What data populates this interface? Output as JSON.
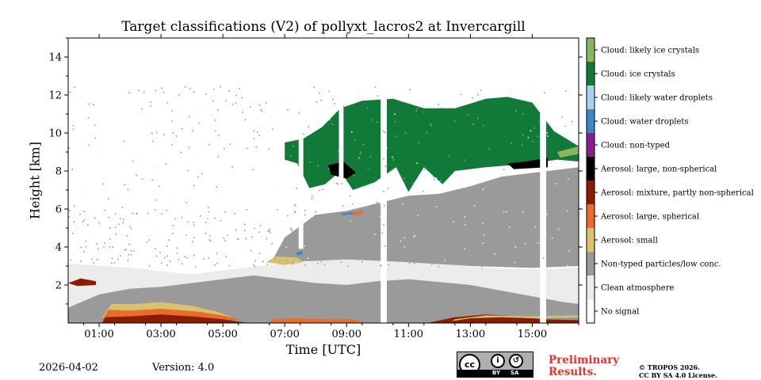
{
  "chart_data": {
    "type": "heatmap",
    "title": "Target classifications (V2) of pollyxt_lacros2 at Invercargill",
    "xlabel": "Time [UTC]",
    "ylabel": "Height [km]",
    "xlim_hours": [
      0,
      16.5
    ],
    "ylim_km": [
      0,
      15
    ],
    "x_ticks": [
      {
        "hour": 1,
        "label": "01:00"
      },
      {
        "hour": 3,
        "label": "03:00"
      },
      {
        "hour": 5,
        "label": "05:00"
      },
      {
        "hour": 7,
        "label": "07:00"
      },
      {
        "hour": 9,
        "label": "09:00"
      },
      {
        "hour": 11,
        "label": "11:00"
      },
      {
        "hour": 13,
        "label": "13:00"
      },
      {
        "hour": 15,
        "label": "15:00"
      }
    ],
    "y_ticks": [
      {
        "km": 2,
        "label": "2"
      },
      {
        "km": 4,
        "label": "4"
      },
      {
        "km": 6,
        "label": "6"
      },
      {
        "km": 8,
        "label": "8"
      },
      {
        "km": 10,
        "label": "10"
      },
      {
        "km": 12,
        "label": "12"
      },
      {
        "km": 14,
        "label": "14"
      }
    ],
    "classes": [
      {
        "id": 0,
        "label": "No signal",
        "color": "#ffffff"
      },
      {
        "id": 1,
        "label": "Clean atmosphere",
        "color": "#ececec"
      },
      {
        "id": 2,
        "label": "Non-typed particles/low conc.",
        "color": "#9a9a9a"
      },
      {
        "id": 3,
        "label": "Aerosol: small",
        "color": "#d9c26f"
      },
      {
        "id": 4,
        "label": "Aerosol: large, spherical",
        "color": "#ea6c2a"
      },
      {
        "id": 5,
        "label": "Aerosol: mixture, partly non-spherical",
        "color": "#8b1c04"
      },
      {
        "id": 6,
        "label": "Aerosol: large, non-spherical",
        "color": "#000000"
      },
      {
        "id": 7,
        "label": "Cloud: non-typed",
        "color": "#861e8c"
      },
      {
        "id": 8,
        "label": "Cloud: water droplets",
        "color": "#3d86c8"
      },
      {
        "id": 9,
        "label": "Cloud: likely water droplets",
        "color": "#aad2ee"
      },
      {
        "id": 10,
        "label": "Cloud: ice crystals",
        "color": "#117a38"
      },
      {
        "id": 11,
        "label": "Cloud: likely ice crystals",
        "color": "#8ab561"
      }
    ],
    "layers": [
      {
        "class": 2,
        "polygon": [
          [
            0,
            0
          ],
          [
            0,
            3.1
          ],
          [
            1,
            3.0
          ],
          [
            2,
            2.9
          ],
          [
            3,
            2.7
          ],
          [
            4,
            2.55
          ],
          [
            5,
            2.75
          ],
          [
            6,
            2.95
          ],
          [
            7,
            3.1
          ],
          [
            8,
            3.25
          ],
          [
            9,
            3.35
          ],
          [
            10,
            3.3
          ],
          [
            11,
            3.2
          ],
          [
            12,
            3.1
          ],
          [
            13,
            2.95
          ],
          [
            14,
            2.85
          ],
          [
            15,
            2.8
          ],
          [
            16,
            2.85
          ],
          [
            16.5,
            2.9
          ],
          [
            16.5,
            0
          ]
        ]
      },
      {
        "class": 1,
        "polygon": [
          [
            0,
            3.1
          ],
          [
            0,
            0.8
          ],
          [
            1,
            1.5
          ],
          [
            2,
            1.8
          ],
          [
            3,
            1.9
          ],
          [
            4,
            2.1
          ],
          [
            5,
            2.3
          ],
          [
            6,
            2.5
          ],
          [
            7,
            2.3
          ],
          [
            8,
            2.1
          ],
          [
            9,
            2.0
          ],
          [
            10,
            2.2
          ],
          [
            11,
            2.3
          ],
          [
            12,
            2.15
          ],
          [
            13,
            2.0
          ],
          [
            14,
            1.7
          ],
          [
            15,
            1.4
          ],
          [
            16,
            1.1
          ],
          [
            16.5,
            1.0
          ],
          [
            16.5,
            2.9
          ],
          [
            16,
            2.85
          ],
          [
            15,
            2.8
          ],
          [
            14,
            2.85
          ],
          [
            13,
            2.95
          ],
          [
            12,
            3.1
          ],
          [
            11,
            3.2
          ],
          [
            10,
            3.3
          ],
          [
            9,
            3.35
          ],
          [
            8,
            3.25
          ],
          [
            7,
            3.1
          ],
          [
            6,
            2.95
          ],
          [
            5,
            2.75
          ],
          [
            4,
            2.55
          ],
          [
            3,
            2.7
          ],
          [
            2,
            2.9
          ],
          [
            1,
            3.0
          ]
        ]
      },
      {
        "class": 2,
        "polygon": [
          [
            0,
            0
          ],
          [
            0,
            0.8
          ],
          [
            1,
            1.5
          ],
          [
            2,
            1.8
          ],
          [
            3,
            1.9
          ],
          [
            4,
            2.1
          ],
          [
            5,
            2.3
          ],
          [
            6,
            2.5
          ],
          [
            7,
            2.3
          ],
          [
            8,
            2.1
          ],
          [
            9,
            2.0
          ],
          [
            10,
            2.2
          ],
          [
            11,
            2.3
          ],
          [
            12,
            2.15
          ],
          [
            13,
            2.0
          ],
          [
            14,
            1.7
          ],
          [
            15,
            1.4
          ],
          [
            16,
            1.1
          ],
          [
            16.5,
            1.0
          ],
          [
            16.5,
            0
          ]
        ]
      },
      {
        "class": 2,
        "polygon": [
          [
            6.6,
            3.3
          ],
          [
            7,
            4.5
          ],
          [
            8,
            5.7
          ],
          [
            9,
            5.9
          ],
          [
            10,
            6.3
          ],
          [
            11,
            6.7
          ],
          [
            12,
            6.8
          ],
          [
            13,
            7.2
          ],
          [
            14,
            7.7
          ],
          [
            15,
            7.9
          ],
          [
            16,
            8.1
          ],
          [
            16.5,
            8.2
          ],
          [
            16.5,
            3.0
          ],
          [
            15,
            2.9
          ],
          [
            13,
            3.0
          ],
          [
            11,
            3.2
          ],
          [
            9,
            3.35
          ],
          [
            7,
            3.2
          ]
        ]
      },
      {
        "class": 3,
        "polygon": [
          [
            1.1,
            0.3
          ],
          [
            1.4,
            1.0
          ],
          [
            2.2,
            1.0
          ],
          [
            3.0,
            1.1
          ],
          [
            4.0,
            0.9
          ],
          [
            4.8,
            0.6
          ],
          [
            5.3,
            0.3
          ]
        ]
      },
      {
        "class": 4,
        "polygon": [
          [
            1.1,
            0.15
          ],
          [
            1.3,
            0.7
          ],
          [
            2.0,
            0.65
          ],
          [
            3.0,
            0.75
          ],
          [
            4.2,
            0.6
          ],
          [
            5.0,
            0.4
          ],
          [
            5.6,
            0.15
          ]
        ]
      },
      {
        "class": 5,
        "polygon": [
          [
            1.1,
            0.0
          ],
          [
            1.2,
            0.3
          ],
          [
            2.0,
            0.35
          ],
          [
            3.0,
            0.45
          ],
          [
            4.0,
            0.35
          ],
          [
            5.0,
            0.2
          ],
          [
            5.8,
            0.0
          ]
        ]
      },
      {
        "class": 5,
        "polygon": [
          [
            0.0,
            2.1
          ],
          [
            0.4,
            2.35
          ],
          [
            0.9,
            2.2
          ],
          [
            0.9,
            2.0
          ],
          [
            0.3,
            1.95
          ]
        ]
      },
      {
        "class": 4,
        "polygon": [
          [
            6.5,
            0.0
          ],
          [
            6.6,
            0.2
          ],
          [
            7.3,
            0.25
          ],
          [
            8.4,
            0.2
          ],
          [
            9.2,
            0.2
          ],
          [
            9.6,
            0.0
          ]
        ]
      },
      {
        "class": 3,
        "polygon": [
          [
            6.4,
            3.2
          ],
          [
            6.7,
            3.5
          ],
          [
            7.4,
            3.45
          ],
          [
            7.6,
            3.2
          ],
          [
            7.0,
            3.05
          ]
        ]
      },
      {
        "class": 5,
        "polygon": [
          [
            11.6,
            0.0
          ],
          [
            12.5,
            0.3
          ],
          [
            13.5,
            0.45
          ],
          [
            14.5,
            0.35
          ],
          [
            15.3,
            0.2
          ],
          [
            16.5,
            0.15
          ],
          [
            16.5,
            0.0
          ]
        ]
      },
      {
        "class": 3,
        "polygon": [
          [
            12.4,
            0.1
          ],
          [
            13.0,
            0.25
          ],
          [
            14.0,
            0.3
          ],
          [
            15.0,
            0.25
          ],
          [
            16.5,
            0.3
          ],
          [
            16.5,
            0.4
          ],
          [
            15.0,
            0.35
          ],
          [
            13.5,
            0.4
          ],
          [
            12.5,
            0.2
          ]
        ]
      },
      {
        "class": 10,
        "polygon": [
          [
            7.0,
            9.5
          ],
          [
            7.6,
            9.7
          ],
          [
            8.2,
            10.3
          ],
          [
            8.8,
            11.3
          ],
          [
            9.5,
            11.7
          ],
          [
            10.5,
            11.8
          ],
          [
            11.5,
            11.3
          ],
          [
            12.5,
            11.3
          ],
          [
            13.5,
            11.8
          ],
          [
            14.2,
            11.9
          ],
          [
            15.0,
            11.6
          ],
          [
            15.7,
            10.1
          ],
          [
            16.5,
            9.3
          ],
          [
            16.5,
            8.5
          ],
          [
            15.8,
            8.6
          ],
          [
            15.0,
            8.4
          ],
          [
            14.3,
            8.3
          ],
          [
            13.5,
            8.2
          ],
          [
            12.5,
            8.0
          ],
          [
            12.1,
            7.3
          ],
          [
            11.5,
            8.2
          ],
          [
            11.0,
            6.9
          ],
          [
            10.6,
            8.2
          ],
          [
            9.9,
            7.4
          ],
          [
            9.2,
            7.0
          ],
          [
            8.8,
            8.0
          ],
          [
            8.3,
            7.3
          ],
          [
            7.8,
            7.1
          ],
          [
            7.4,
            8.4
          ],
          [
            7.0,
            8.6
          ]
        ]
      },
      {
        "class": 6,
        "polygon": [
          [
            8.4,
            8.3
          ],
          [
            8.9,
            8.5
          ],
          [
            9.3,
            7.9
          ],
          [
            9.0,
            7.6
          ],
          [
            8.5,
            7.8
          ]
        ]
      },
      {
        "class": 6,
        "polygon": [
          [
            14.2,
            8.4
          ],
          [
            14.8,
            8.5
          ],
          [
            15.5,
            8.7
          ],
          [
            15.5,
            8.2
          ],
          [
            14.4,
            8.1
          ]
        ]
      },
      {
        "class": 11,
        "polygon": [
          [
            15.8,
            9.0
          ],
          [
            16.5,
            9.3
          ],
          [
            16.5,
            8.9
          ],
          [
            15.9,
            8.7
          ]
        ]
      },
      {
        "class": 8,
        "polygon": [
          [
            8.8,
            5.75
          ],
          [
            9.2,
            5.85
          ],
          [
            9.3,
            5.75
          ],
          [
            8.9,
            5.65
          ]
        ]
      },
      {
        "class": 4,
        "polygon": [
          [
            9.2,
            5.85
          ],
          [
            9.5,
            5.9
          ],
          [
            9.5,
            5.7
          ],
          [
            9.2,
            5.7
          ]
        ]
      },
      {
        "class": 8,
        "polygon": [
          [
            7.38,
            3.7
          ],
          [
            7.55,
            3.8
          ],
          [
            7.6,
            3.6
          ],
          [
            7.4,
            3.55
          ]
        ]
      }
    ],
    "gaps": [
      [
        7.45,
        7.6,
        3.9,
        15
      ],
      [
        8.75,
        8.9,
        6.0,
        15
      ],
      [
        10.1,
        10.3,
        0,
        15
      ],
      [
        15.25,
        15.45,
        0,
        15
      ]
    ]
  },
  "footer": {
    "date": "2026-04-02",
    "version": "Version: 4.0",
    "preliminary": "Preliminary\nResults.",
    "copyright": "© TROPOS 2026.\nCC BY SA 4.0 License."
  },
  "license_badge": {
    "cc": "cc",
    "by": "BY",
    "sa": "SA"
  }
}
